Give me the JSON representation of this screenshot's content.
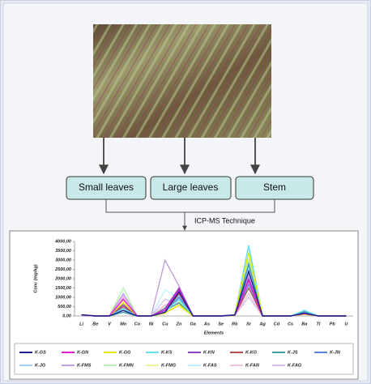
{
  "diagram": {
    "nodes": [
      {
        "label": "Small leaves"
      },
      {
        "label": "Large leaves"
      },
      {
        "label": "Stem"
      }
    ],
    "technique": "ICP-MS Technique"
  },
  "chart_data": {
    "type": "line",
    "y_label": "Conc (mg/kg)",
    "x_label": "Elements",
    "categories": [
      "Li",
      "Be",
      "V",
      "Mn",
      "Co",
      "Ni",
      "Cu",
      "Zn",
      "Ga",
      "As",
      "Se",
      "Rb",
      "Sr",
      "Ag",
      "Cd",
      "Cs",
      "Ba",
      "Tl",
      "Pb",
      "U"
    ],
    "ylim": [
      0,
      4000
    ],
    "yticks": [
      {
        "value": 0,
        "label": "0,00"
      },
      {
        "value": 500,
        "label": "500,00"
      },
      {
        "value": 1000,
        "label": "1000,00"
      },
      {
        "value": 1500,
        "label": "1500,00"
      },
      {
        "value": 2000,
        "label": "2000,00"
      },
      {
        "value": 2500,
        "label": "2500,00"
      },
      {
        "value": 3000,
        "label": "3000,00"
      },
      {
        "value": 3500,
        "label": "3500,00"
      },
      {
        "value": 4000,
        "label": "4000,00"
      }
    ],
    "series": [
      {
        "name": "K-GS",
        "color": "#1f1f8f",
        "values": [
          60,
          0,
          0,
          300,
          0,
          0,
          200,
          1300,
          0,
          0,
          0,
          50,
          2400,
          0,
          0,
          0,
          150,
          0,
          0,
          0
        ]
      },
      {
        "name": "K-GN",
        "color": "#e020d0",
        "values": [
          50,
          0,
          0,
          900,
          0,
          0,
          300,
          1400,
          0,
          0,
          0,
          40,
          1900,
          0,
          0,
          0,
          120,
          0,
          0,
          0
        ]
      },
      {
        "name": "K-GG",
        "color": "#e8e800",
        "values": [
          40,
          0,
          0,
          700,
          0,
          0,
          150,
          600,
          0,
          0,
          0,
          30,
          3400,
          0,
          0,
          0,
          100,
          0,
          0,
          0
        ]
      },
      {
        "name": "K-KS",
        "color": "#60e0f0",
        "values": [
          50,
          0,
          0,
          400,
          0,
          0,
          250,
          900,
          0,
          0,
          0,
          40,
          3800,
          0,
          0,
          0,
          300,
          0,
          0,
          0
        ]
      },
      {
        "name": "K-KN",
        "color": "#9040c0",
        "values": [
          40,
          0,
          0,
          600,
          0,
          0,
          400,
          1500,
          0,
          0,
          0,
          50,
          2000,
          0,
          0,
          0,
          150,
          0,
          0,
          0
        ]
      },
      {
        "name": "K-KG",
        "color": "#b05050",
        "values": [
          30,
          0,
          0,
          500,
          0,
          0,
          200,
          1200,
          0,
          0,
          0,
          30,
          1500,
          0,
          0,
          0,
          100,
          0,
          0,
          0
        ]
      },
      {
        "name": "K-JS",
        "color": "#40a0a0",
        "values": [
          60,
          0,
          0,
          200,
          0,
          0,
          300,
          700,
          0,
          0,
          0,
          60,
          2800,
          0,
          0,
          0,
          250,
          0,
          0,
          0
        ]
      },
      {
        "name": "K-JN",
        "color": "#6080e0",
        "values": [
          50,
          0,
          0,
          400,
          0,
          0,
          200,
          1000,
          0,
          0,
          0,
          50,
          1700,
          0,
          0,
          0,
          200,
          0,
          0,
          0
        ]
      },
      {
        "name": "K-JG",
        "color": "#a0d0ff",
        "values": [
          40,
          0,
          0,
          300,
          0,
          0,
          150,
          1100,
          0,
          0,
          0,
          40,
          2600,
          0,
          0,
          0,
          150,
          0,
          0,
          0
        ]
      },
      {
        "name": "K-FMS",
        "color": "#c0a0e0",
        "values": [
          30,
          0,
          0,
          1200,
          0,
          0,
          3000,
          1600,
          0,
          0,
          0,
          30,
          2200,
          0,
          0,
          0,
          100,
          0,
          0,
          0
        ]
      },
      {
        "name": "K-FMN",
        "color": "#b8f0b8",
        "values": [
          40,
          0,
          0,
          1500,
          0,
          0,
          500,
          800,
          0,
          0,
          0,
          40,
          3100,
          0,
          0,
          0,
          120,
          0,
          0,
          0
        ]
      },
      {
        "name": "K-FMG",
        "color": "#f0f0a0",
        "values": [
          30,
          0,
          0,
          800,
          0,
          0,
          300,
          500,
          0,
          0,
          0,
          30,
          3000,
          0,
          0,
          0,
          80,
          0,
          0,
          0
        ]
      },
      {
        "name": "K-FAS",
        "color": "#c0f0ff",
        "values": [
          50,
          0,
          0,
          600,
          0,
          0,
          1400,
          1000,
          0,
          0,
          0,
          50,
          3600,
          0,
          0,
          0,
          200,
          0,
          0,
          0
        ]
      },
      {
        "name": "K-FAN",
        "color": "#f0c0e0",
        "values": [
          40,
          0,
          0,
          1000,
          0,
          0,
          600,
          700,
          0,
          0,
          0,
          40,
          1200,
          0,
          0,
          0,
          100,
          0,
          0,
          0
        ]
      },
      {
        "name": "K-FAG",
        "color": "#d8c0f0",
        "values": [
          30,
          0,
          0,
          1100,
          0,
          0,
          900,
          600,
          0,
          0,
          0,
          30,
          1000,
          0,
          0,
          0,
          90,
          0,
          0,
          0
        ]
      }
    ]
  }
}
